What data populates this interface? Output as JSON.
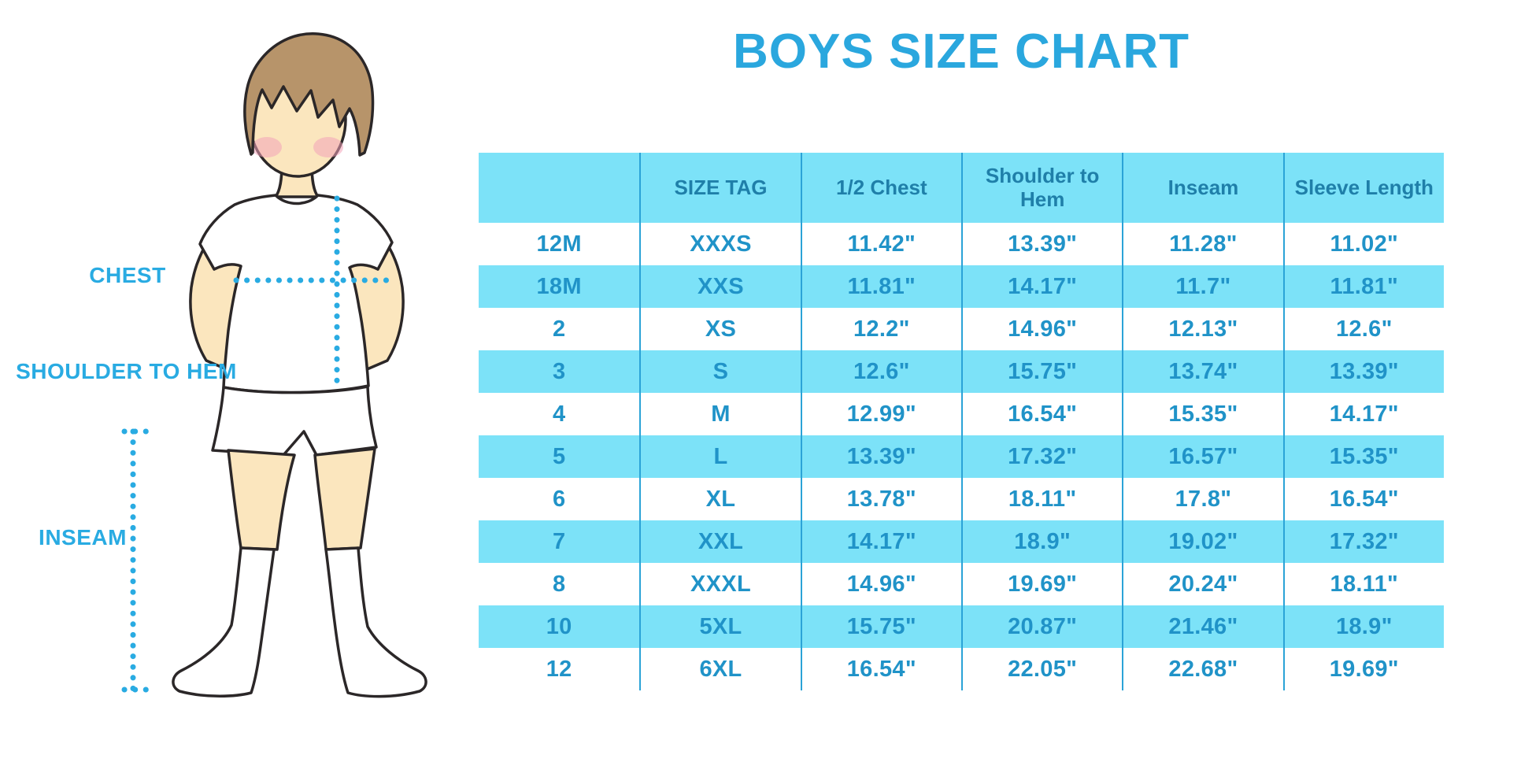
{
  "figure_labels": {
    "chest": "CHEST",
    "shoulder_to_hem": "SHOULDER TO HEM",
    "inseam": "INSEAM"
  },
  "chart_data": {
    "type": "table",
    "title": "BOYS SIZE CHART",
    "columns": [
      "",
      "SIZE TAG",
      "1/2 Chest",
      "Shoulder to Hem",
      "Inseam",
      "Sleeve Length"
    ],
    "rows": [
      [
        "12M",
        "XXXS",
        "11.42\"",
        "13.39\"",
        "11.28\"",
        "11.02\""
      ],
      [
        "18M",
        "XXS",
        "11.81\"",
        "14.17\"",
        "11.7\"",
        "11.81\""
      ],
      [
        "2",
        "XS",
        "12.2\"",
        "14.96\"",
        "12.13\"",
        "12.6\""
      ],
      [
        "3",
        "S",
        "12.6\"",
        "15.75\"",
        "13.74\"",
        "13.39\""
      ],
      [
        "4",
        "M",
        "12.99\"",
        "16.54\"",
        "15.35\"",
        "14.17\""
      ],
      [
        "5",
        "L",
        "13.39\"",
        "17.32\"",
        "16.57\"",
        "15.35\""
      ],
      [
        "6",
        "XL",
        "13.78\"",
        "18.11\"",
        "17.8\"",
        "16.54\""
      ],
      [
        "7",
        "XXL",
        "14.17\"",
        "18.9\"",
        "19.02\"",
        "17.32\""
      ],
      [
        "8",
        "XXXL",
        "14.96\"",
        "19.69\"",
        "20.24\"",
        "18.11\""
      ],
      [
        "10",
        "5XL",
        "15.75\"",
        "20.87\"",
        "21.46\"",
        "18.9\""
      ],
      [
        "12",
        "6XL",
        "16.54\"",
        "22.05\"",
        "22.68\"",
        "19.69\""
      ]
    ],
    "layout": {
      "row_striping": "alternating white and cyan, first data row white",
      "grid": "vertical column separators only",
      "legend": "none"
    }
  },
  "colors": {
    "accent": "#29ABE2",
    "title-color": "#2AA7DE",
    "stripe": "#7CE2F8",
    "grid-line": "#2BA3D7",
    "header-text": "#1F7FA9",
    "cell-text": "#2093C8",
    "skin": "#FBE6BE",
    "hair": "#B7946A",
    "cheek": "#F2A3B8",
    "outline": "#2B2728"
  }
}
